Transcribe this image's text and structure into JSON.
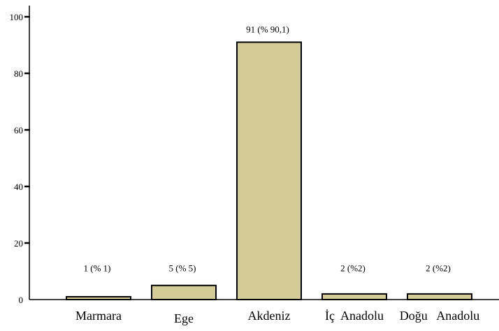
{
  "chart_data": {
    "type": "bar",
    "categories": [
      "Marmara",
      "Ege",
      "Akdeniz",
      "İç  Anadolu",
      "Doğu   Anadolu"
    ],
    "values": [
      1,
      5,
      91,
      2,
      2
    ],
    "data_labels": [
      "1 (% 1)",
      "5 (% 5)",
      "91 (% 90,1)",
      "2 (%2)",
      "2 (%2)"
    ],
    "title": "",
    "xlabel": "",
    "ylabel": "",
    "ylim": [
      0,
      100
    ],
    "yticks": [
      0,
      20,
      40,
      60,
      80,
      100
    ],
    "grid": false,
    "legend": "none",
    "colors": {
      "bar_fill": "#d4cc96",
      "bar_stroke": "#000000"
    }
  }
}
